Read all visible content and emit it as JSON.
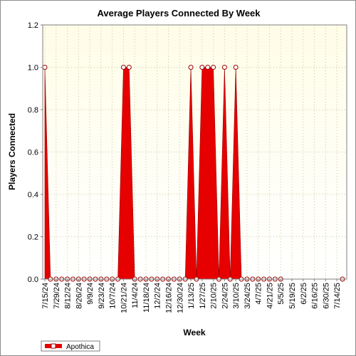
{
  "chart_data": {
    "type": "area",
    "title": "Average Players Connected By Week",
    "xlabel": "Week",
    "ylabel": "Players Connected",
    "ylim": [
      0,
      1.2
    ],
    "yticks": [
      "0.0",
      "0.2",
      "0.4",
      "0.6",
      "0.8",
      "1.0",
      "1.2"
    ],
    "grid": true,
    "legend_position": "bottom-left",
    "colors": {
      "series": "#e60000",
      "series_edge": "#990000",
      "plot_bg_top": "#fffde8",
      "plot_bg_bottom": "#ffffff",
      "grid": "#c8c8a0"
    },
    "x_tick_labels": [
      "7/15/24",
      "7/29/24",
      "8/12/24",
      "8/26/24",
      "9/9/24",
      "9/23/24",
      "10/7/24",
      "10/21/24",
      "11/4/24",
      "11/18/24",
      "12/2/24",
      "12/16/24",
      "12/30/24",
      "1/13/25",
      "1/27/25",
      "2/10/25",
      "2/24/25",
      "3/10/25",
      "3/24/25",
      "4/7/25",
      "4/21/25",
      "5/5/25",
      "5/19/25",
      "6/2/25",
      "6/16/25",
      "6/30/25",
      "7/14/25"
    ],
    "x": [
      "7/15/24",
      "7/22/24",
      "7/29/24",
      "8/5/24",
      "8/12/24",
      "8/19/24",
      "8/26/24",
      "9/2/24",
      "9/9/24",
      "9/16/24",
      "9/23/24",
      "9/30/24",
      "10/7/24",
      "10/14/24",
      "10/21/24",
      "10/28/24",
      "11/4/24",
      "11/11/24",
      "11/18/24",
      "11/25/24",
      "12/2/24",
      "12/9/24",
      "12/16/24",
      "12/23/24",
      "12/30/24",
      "1/6/25",
      "1/13/25",
      "1/20/25",
      "1/27/25",
      "2/3/25",
      "2/10/25",
      "2/17/25",
      "2/24/25",
      "3/3/25",
      "3/10/25",
      "3/17/25",
      "3/24/25",
      "3/31/25",
      "4/7/25",
      "4/14/25",
      "4/21/25",
      "4/28/25",
      "5/5/25",
      "5/12/25",
      "5/19/25",
      "5/26/25",
      "6/2/25",
      "6/9/25",
      "6/16/25",
      "6/23/25",
      "6/30/25",
      "7/7/25",
      "7/14/25",
      "7/21/25"
    ],
    "series": [
      {
        "name": "Apothica",
        "values": [
          1,
          0,
          0,
          0,
          0,
          0,
          0,
          0,
          0,
          0,
          0,
          0,
          0,
          0,
          1,
          1,
          0,
          0,
          0,
          0,
          0,
          0,
          0,
          0,
          0,
          0,
          1,
          0,
          1,
          1,
          1,
          0,
          1,
          0,
          1,
          0,
          0,
          0,
          0,
          0,
          0,
          0,
          0,
          null,
          null,
          null,
          null,
          null,
          null,
          null,
          null,
          null,
          null,
          0
        ]
      }
    ]
  }
}
